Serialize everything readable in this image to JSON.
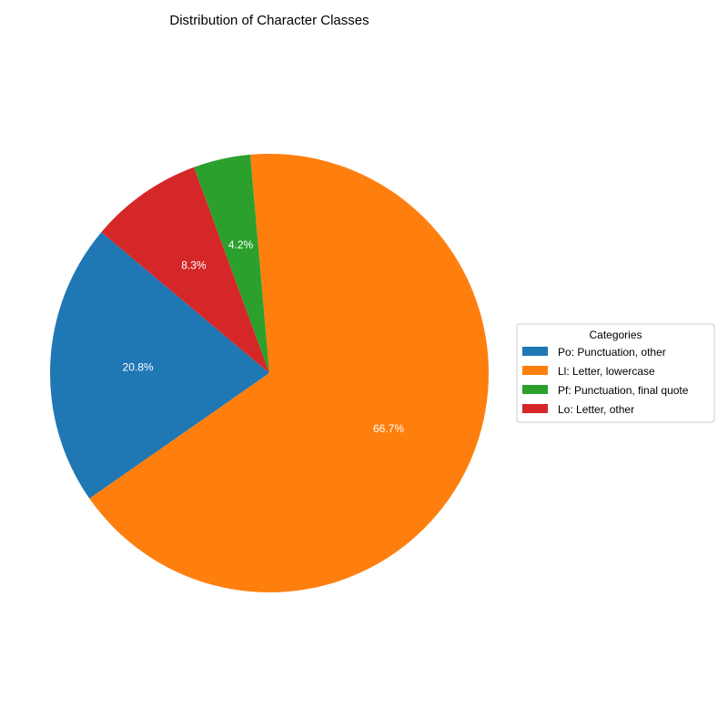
{
  "chart_data": {
    "type": "pie",
    "title": "Distribution of Character Classes",
    "legend_title": "Categories",
    "legend_position": "right",
    "start_angle_deg": 140,
    "direction": "counterclockwise",
    "slices": [
      {
        "label": "Po: Punctuation, other",
        "value": 20.8,
        "pct_label": "20.8%",
        "color": "#1f77b4"
      },
      {
        "label": "Ll: Letter, lowercase",
        "value": 66.7,
        "pct_label": "66.7%",
        "color": "#ff7f0e"
      },
      {
        "label": "Pf: Punctuation, final quote",
        "value": 4.2,
        "pct_label": "4.2%",
        "color": "#2ca02c"
      },
      {
        "label": "Lo: Letter, other",
        "value": 8.3,
        "pct_label": "8.3%",
        "color": "#d62728"
      }
    ]
  }
}
